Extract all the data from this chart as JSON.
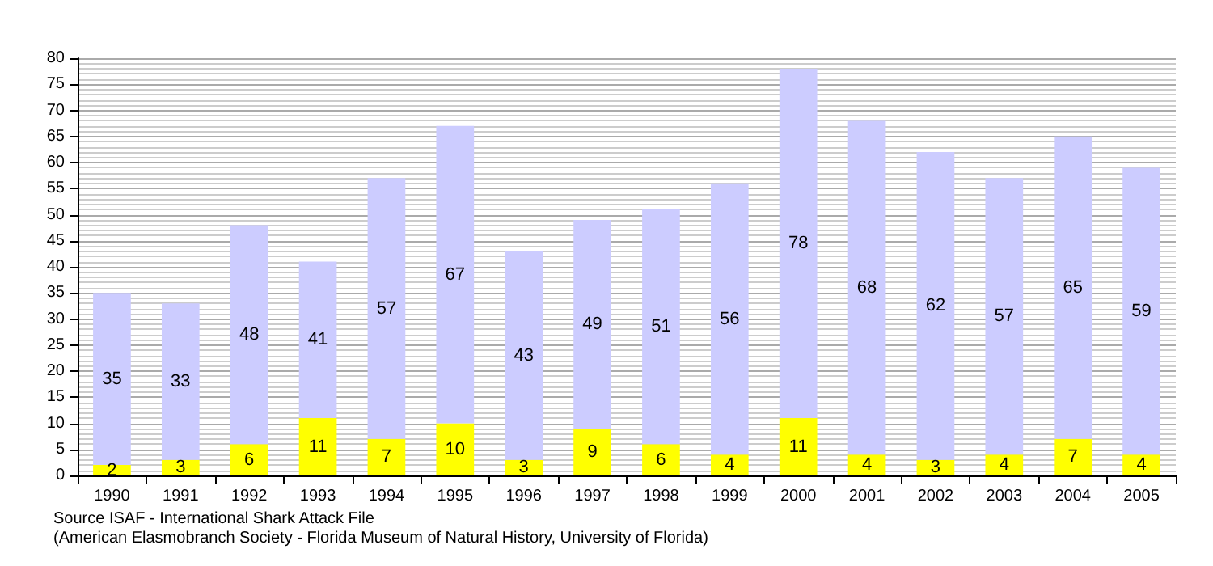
{
  "chart_data": {
    "type": "bar",
    "stacked": true,
    "categories": [
      "1990",
      "1991",
      "1992",
      "1993",
      "1994",
      "1995",
      "1996",
      "1997",
      "1998",
      "1999",
      "2000",
      "2001",
      "2002",
      "2003",
      "2004",
      "2005"
    ],
    "series": [
      {
        "color": "#ffff00",
        "values": [
          2,
          3,
          6,
          11,
          7,
          10,
          3,
          9,
          6,
          4,
          11,
          4,
          3,
          4,
          7,
          4
        ],
        "value_labels": [
          "2",
          "3",
          "6",
          "11",
          "7",
          "10",
          "3",
          "9",
          "6",
          "4",
          "11",
          "4",
          "3",
          "4",
          "7",
          "4"
        ]
      },
      {
        "color": "#ccccff",
        "values": [
          33,
          30,
          42,
          30,
          50,
          57,
          40,
          40,
          45,
          52,
          67,
          64,
          59,
          53,
          58,
          55
        ]
      }
    ],
    "totals": [
      "35",
      "33",
      "48",
      "41",
      "57",
      "67",
      "43",
      "49",
      "51",
      "56",
      "78",
      "68",
      "62",
      "57",
      "65",
      "59"
    ],
    "ylim": [
      0,
      80
    ],
    "yticks": [
      0,
      5,
      10,
      15,
      20,
      25,
      30,
      35,
      40,
      45,
      50,
      55,
      60,
      65,
      70,
      75,
      80
    ],
    "grid": "y",
    "annotations": [
      "Source ISAF - International Shark Attack File",
      "(American Elasmobranch Society - Florida Museum of Natural History, University of Florida)"
    ]
  }
}
